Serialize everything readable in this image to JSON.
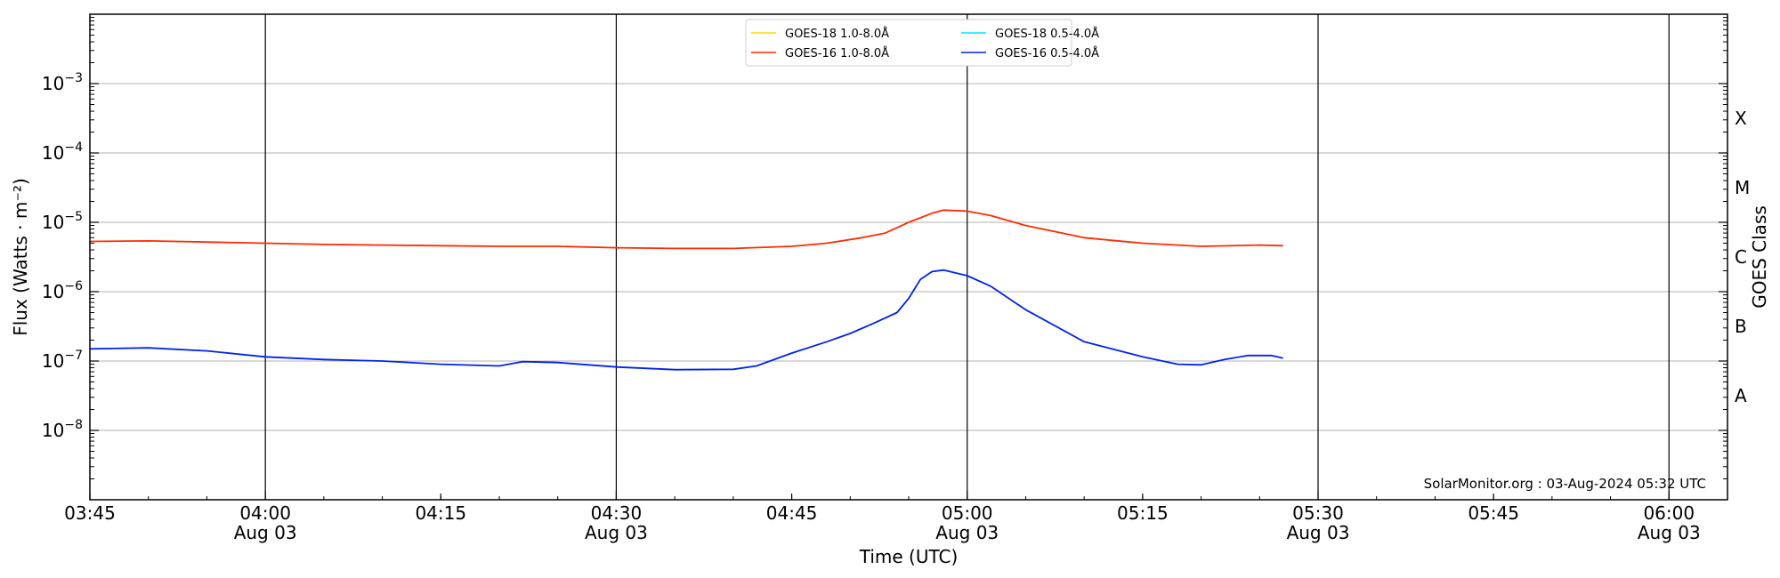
{
  "chart_data": {
    "type": "line",
    "title": "",
    "xlabel": "Time (UTC)",
    "ylabel": "Flux (Watts · m⁻²)",
    "ylabel_right": "GOES Class",
    "yscale": "log",
    "ylim": [
      1e-09,
      0.01
    ],
    "xlim": [
      "03:45",
      "06:05"
    ],
    "x_unit_labels": {
      "major": [
        {
          "time": "04:00",
          "label": "04:00",
          "date": "Aug 03"
        },
        {
          "time": "04:30",
          "label": "04:30",
          "date": "Aug 03"
        },
        {
          "time": "05:00",
          "label": "05:00",
          "date": "Aug 03"
        },
        {
          "time": "05:30",
          "label": "05:30",
          "date": "Aug 03"
        },
        {
          "time": "06:00",
          "label": "06:00",
          "date": "Aug 03"
        }
      ],
      "minor": [
        {
          "time": "03:45",
          "label": "03:45"
        },
        {
          "time": "04:15",
          "label": "04:15"
        },
        {
          "time": "04:45",
          "label": "04:45"
        },
        {
          "time": "05:15",
          "label": "05:15"
        },
        {
          "time": "05:45",
          "label": "05:45"
        }
      ]
    },
    "y_tick_labels": [
      {
        "value": 1e-08,
        "base": "10",
        "exp": "−8"
      },
      {
        "value": 1e-07,
        "base": "10",
        "exp": "−7"
      },
      {
        "value": 1e-06,
        "base": "10",
        "exp": "−6"
      },
      {
        "value": 1e-05,
        "base": "10",
        "exp": "−5"
      },
      {
        "value": 0.0001,
        "base": "10",
        "exp": "−4"
      },
      {
        "value": 0.001,
        "base": "10",
        "exp": "−3"
      }
    ],
    "goes_classes": [
      {
        "label": "A",
        "value": 3.16e-08
      },
      {
        "label": "B",
        "value": 3.16e-07
      },
      {
        "label": "C",
        "value": 3.16e-06
      },
      {
        "label": "M",
        "value": 3.16e-05
      },
      {
        "label": "X",
        "value": 0.000316
      }
    ],
    "grid": "horizontal at decades, vertical at 30-minute marks",
    "legend_position": "top-center",
    "legend_columns": 2,
    "series": [
      {
        "name": "GOES-18 1.0-8.0Å",
        "color": "#ffd700",
        "x": [],
        "y": []
      },
      {
        "name": "GOES-18 0.5-4.0Å",
        "color": "#00e5ff",
        "x": [],
        "y": []
      },
      {
        "name": "GOES-16 1.0-8.0Å",
        "color": "#ff2a00",
        "x": [
          "03:45",
          "03:50",
          "03:55",
          "04:00",
          "04:05",
          "04:10",
          "04:15",
          "04:20",
          "04:25",
          "04:30",
          "04:35",
          "04:40",
          "04:45",
          "04:48",
          "04:51",
          "04:53",
          "04:55",
          "04:57",
          "04:58",
          "05:00",
          "05:02",
          "05:05",
          "05:10",
          "05:15",
          "05:20",
          "05:25",
          "05:27"
        ],
        "y": [
          5.3e-06,
          5.4e-06,
          5.2e-06,
          5e-06,
          4.8e-06,
          4.7e-06,
          4.6e-06,
          4.5e-06,
          4.5e-06,
          4.3e-06,
          4.2e-06,
          4.2e-06,
          4.5e-06,
          5e-06,
          6e-06,
          7e-06,
          1e-05,
          1.35e-05,
          1.5e-05,
          1.45e-05,
          1.25e-05,
          9e-06,
          6e-06,
          5e-06,
          4.5e-06,
          4.7e-06,
          4.6e-06
        ]
      },
      {
        "name": "GOES-16 0.5-4.0Å",
        "color": "#0022ee",
        "x": [
          "03:45",
          "03:50",
          "03:55",
          "04:00",
          "04:05",
          "04:10",
          "04:15",
          "04:20",
          "04:22",
          "04:25",
          "04:30",
          "04:35",
          "04:40",
          "04:42",
          "04:45",
          "04:48",
          "04:50",
          "04:52",
          "04:54",
          "04:55",
          "04:56",
          "04:57",
          "04:58",
          "05:00",
          "05:02",
          "05:05",
          "05:10",
          "05:15",
          "05:18",
          "05:20",
          "05:22",
          "05:24",
          "05:26",
          "05:27"
        ],
        "y": [
          1.5e-07,
          1.55e-07,
          1.4e-07,
          1.15e-07,
          1.05e-07,
          1e-07,
          9e-08,
          8.5e-08,
          9.8e-08,
          9.5e-08,
          8.2e-08,
          7.5e-08,
          7.6e-08,
          8.5e-08,
          1.3e-07,
          1.9e-07,
          2.5e-07,
          3.5e-07,
          5e-07,
          8e-07,
          1.5e-06,
          1.95e-06,
          2.05e-06,
          1.7e-06,
          1.2e-06,
          5.5e-07,
          1.9e-07,
          1.15e-07,
          9e-08,
          8.8e-08,
          1.05e-07,
          1.2e-07,
          1.2e-07,
          1.1e-07
        ]
      }
    ],
    "annotations": [
      "SolarMonitor.org : 03-Aug-2024 05:32 UTC"
    ]
  }
}
